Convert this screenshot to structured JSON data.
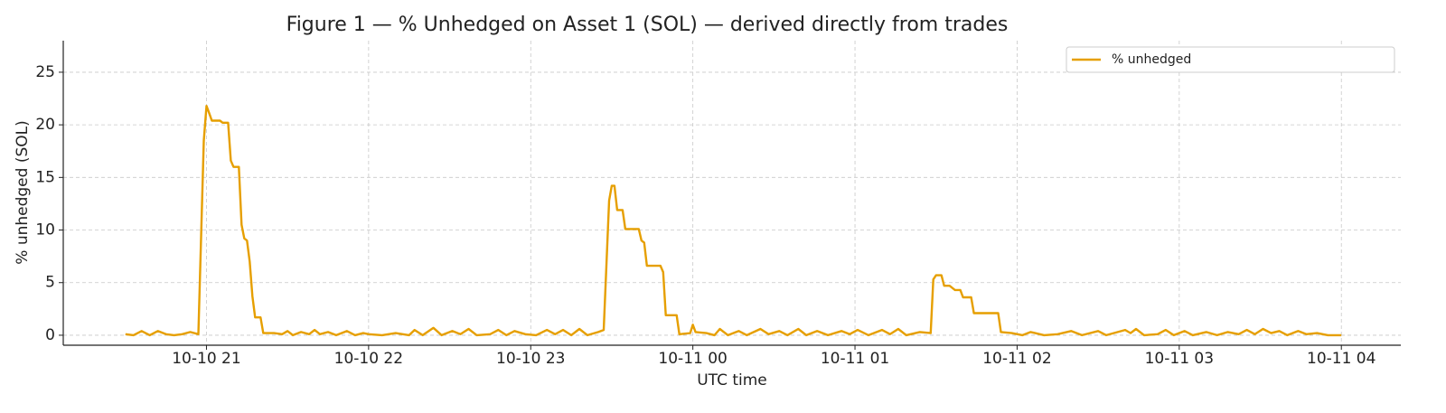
{
  "chart_data": {
    "type": "line",
    "title": "Figure 1 — % Unhedged on Asset 1 (SOL) — derived directly from trades",
    "xlabel": "UTC time",
    "ylabel": "% unhedged (SOL)",
    "x": [
      "10-10 20:30",
      "10-10 20:33",
      "10-10 20:36",
      "10-10 20:39",
      "10-10 20:42",
      "10-10 20:45",
      "10-10 20:48",
      "10-10 20:51",
      "10-10 20:54",
      "10-10 20:57",
      "10-10 20:59",
      "10-10 21:00",
      "10-10 21:01",
      "10-10 21:02",
      "10-10 21:05",
      "10-10 21:06",
      "10-10 21:08",
      "10-10 21:09",
      "10-10 21:10",
      "10-10 21:12",
      "10-10 21:13",
      "10-10 21:14",
      "10-10 21:15",
      "10-10 21:16",
      "10-10 21:17",
      "10-10 21:18",
      "10-10 21:20",
      "10-10 21:21",
      "10-10 21:25",
      "10-10 21:28",
      "10-10 21:30",
      "10-10 21:32",
      "10-10 21:35",
      "10-10 21:38",
      "10-10 21:40",
      "10-10 21:42",
      "10-10 21:45",
      "10-10 21:48",
      "10-10 21:52",
      "10-10 21:55",
      "10-10 21:58",
      "10-10 22:00",
      "10-10 22:05",
      "10-10 22:10",
      "10-10 22:15",
      "10-10 22:17",
      "10-10 22:20",
      "10-10 22:24",
      "10-10 22:27",
      "10-10 22:31",
      "10-10 22:34",
      "10-10 22:37",
      "10-10 22:40",
      "10-10 22:45",
      "10-10 22:48",
      "10-10 22:51",
      "10-10 22:54",
      "10-10 22:58",
      "10-10 23:02",
      "10-10 23:06",
      "10-10 23:09",
      "10-10 23:12",
      "10-10 23:15",
      "10-10 23:18",
      "10-10 23:21",
      "10-10 23:25",
      "10-10 23:27",
      "10-10 23:29",
      "10-10 23:30",
      "10-10 23:31",
      "10-10 23:32",
      "10-10 23:34",
      "10-10 23:35",
      "10-10 23:40",
      "10-10 23:41",
      "10-10 23:42",
      "10-10 23:43",
      "10-10 23:48",
      "10-10 23:49",
      "10-10 23:50",
      "10-10 23:54",
      "10-10 23:55",
      "10-10 23:59",
      "10-11 00:00",
      "10-11 00:01",
      "10-11 00:05",
      "10-11 00:08",
      "10-11 00:10",
      "10-11 00:13",
      "10-11 00:17",
      "10-11 00:20",
      "10-11 00:25",
      "10-11 00:28",
      "10-11 00:32",
      "10-11 00:35",
      "10-11 00:39",
      "10-11 00:42",
      "10-11 00:46",
      "10-11 00:50",
      "10-11 00:55",
      "10-11 00:58",
      "10-11 01:01",
      "10-11 01:05",
      "10-11 01:10",
      "10-11 01:13",
      "10-11 01:16",
      "10-11 01:19",
      "10-11 01:24",
      "10-11 01:28",
      "10-11 01:29",
      "10-11 01:30",
      "10-11 01:32",
      "10-11 01:33",
      "10-11 01:35",
      "10-11 01:37",
      "10-11 01:39",
      "10-11 01:40",
      "10-11 01:43",
      "10-11 01:44",
      "10-11 01:53",
      "10-11 01:54",
      "10-11 01:58",
      "10-11 02:02",
      "10-11 02:05",
      "10-11 02:10",
      "10-11 02:15",
      "10-11 02:20",
      "10-11 02:24",
      "10-11 02:30",
      "10-11 02:33",
      "10-11 02:40",
      "10-11 02:42",
      "10-11 02:44",
      "10-11 02:47",
      "10-11 02:52",
      "10-11 02:55",
      "10-11 02:58",
      "10-11 03:02",
      "10-11 03:05",
      "10-11 03:10",
      "10-11 03:14",
      "10-11 03:18",
      "10-11 03:22",
      "10-11 03:25",
      "10-11 03:28",
      "10-11 03:31",
      "10-11 03:34",
      "10-11 03:37",
      "10-11 03:40",
      "10-11 03:44",
      "10-11 03:47",
      "10-11 03:51",
      "10-11 03:55",
      "10-11 04:00"
    ],
    "series": [
      {
        "name": "% unhedged",
        "color": "#e69f00",
        "values": [
          0.1,
          0,
          0.4,
          0,
          0.4,
          0.1,
          0,
          0.1,
          0.3,
          0.1,
          18.5,
          21.8,
          21.1,
          20.4,
          20.4,
          20.2,
          20.2,
          16.6,
          16.0,
          16.0,
          10.5,
          9.2,
          9.0,
          7.0,
          3.7,
          1.7,
          1.7,
          0.2,
          0.2,
          0.1,
          0.4,
          0,
          0.3,
          0.1,
          0.5,
          0.1,
          0.3,
          0,
          0.4,
          0,
          0.2,
          0.1,
          0,
          0.2,
          0,
          0.5,
          0,
          0.7,
          0,
          0.4,
          0.1,
          0.6,
          0,
          0.1,
          0.5,
          0,
          0.4,
          0.1,
          0,
          0.5,
          0.1,
          0.5,
          0,
          0.6,
          0,
          0.3,
          0.5,
          12.8,
          14.2,
          14.2,
          11.9,
          11.9,
          10.1,
          10.1,
          9.0,
          8.8,
          6.6,
          6.6,
          6.0,
          1.9,
          1.9,
          0.1,
          0.2,
          1.0,
          0.3,
          0.2,
          0,
          0.6,
          0,
          0.4,
          0,
          0.6,
          0.1,
          0.4,
          0,
          0.6,
          0,
          0.4,
          0,
          0.4,
          0.1,
          0.5,
          0,
          0.5,
          0.1,
          0.6,
          0,
          0.3,
          0.2,
          5.3,
          5.7,
          5.7,
          4.7,
          4.7,
          4.3,
          4.3,
          3.6,
          3.6,
          2.1,
          2.1,
          0.3,
          0.2,
          0,
          0.3,
          0,
          0.1,
          0.4,
          0,
          0.4,
          0,
          0.5,
          0.2,
          0.6,
          0,
          0.1,
          0.5,
          0,
          0.4,
          0,
          0.3,
          0,
          0.3,
          0.1,
          0.5,
          0.1,
          0.6,
          0.2,
          0.4,
          0,
          0.4,
          0.1,
          0.2,
          0,
          0
        ]
      }
    ],
    "xlim": [
      "10-10 20:07",
      "10-11 04:22"
    ],
    "xticks": [
      {
        "value": "10-10 21:00",
        "label": "10-10 21"
      },
      {
        "value": "10-10 22:00",
        "label": "10-10 22"
      },
      {
        "value": "10-10 23:00",
        "label": "10-10 23"
      },
      {
        "value": "10-11 00:00",
        "label": "10-11 00"
      },
      {
        "value": "10-11 01:00",
        "label": "10-11 01"
      },
      {
        "value": "10-11 02:00",
        "label": "10-11 02"
      },
      {
        "value": "10-11 03:00",
        "label": "10-11 03"
      },
      {
        "value": "10-11 04:00",
        "label": "10-11 04"
      }
    ],
    "ylim": [
      -0.95,
      28
    ],
    "yticks": [
      0,
      5,
      10,
      15,
      20,
      25
    ],
    "grid": true,
    "legend": "upper right"
  }
}
